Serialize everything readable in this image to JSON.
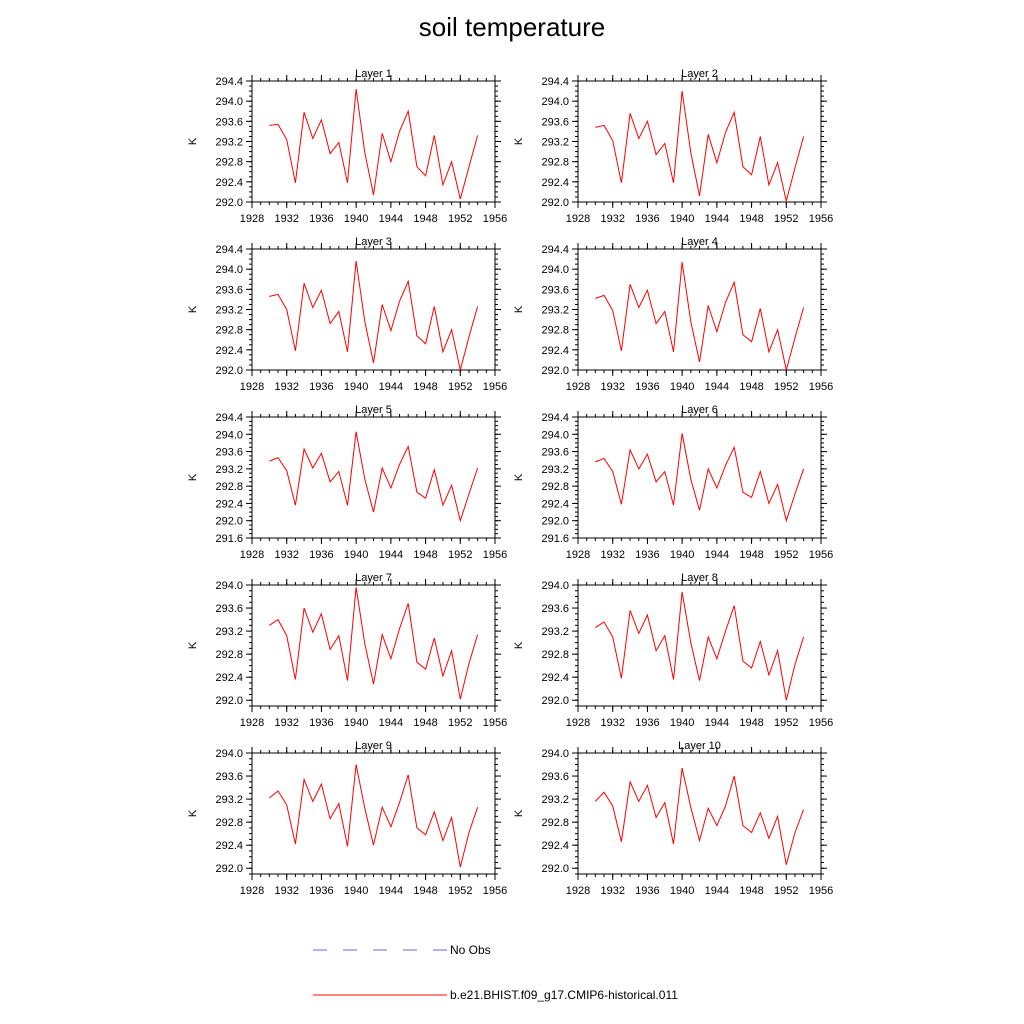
{
  "title": "soil temperature",
  "chart_data": [
    {
      "type": "line",
      "title": "Layer 1",
      "ylabel": "K",
      "ylim": [
        292.0,
        294.4
      ],
      "yticks": [
        "292.0",
        "292.4",
        "292.8",
        "293.2",
        "293.6",
        "294.0",
        "294.4"
      ],
      "xlim": [
        1928,
        1956
      ],
      "xticks": [
        "1928",
        "1932",
        "1936",
        "1940",
        "1944",
        "1948",
        "1952",
        "1956"
      ],
      "series": [
        {
          "name": "b.e21.BHIST.f09_g17.CMIP6-historical.011",
          "x": [
            1930,
            1931,
            1932,
            1933,
            1934,
            1935,
            1936,
            1937,
            1938,
            1939,
            1940,
            1941,
            1942,
            1943,
            1944,
            1945,
            1946,
            1947,
            1948,
            1949,
            1950,
            1951,
            1952,
            1953,
            1954
          ],
          "y": [
            293.52,
            293.54,
            293.24,
            292.38,
            293.78,
            293.26,
            293.63,
            292.96,
            293.18,
            292.38,
            294.24,
            292.98,
            292.14,
            293.36,
            292.8,
            293.4,
            293.8,
            292.7,
            292.52,
            293.32,
            292.34,
            292.8,
            292.06,
            292.7,
            293.32
          ]
        }
      ]
    },
    {
      "type": "line",
      "title": "Layer 2",
      "ylabel": "K",
      "ylim": [
        292.0,
        294.4
      ],
      "yticks": [
        "292.0",
        "292.4",
        "292.8",
        "293.2",
        "293.6",
        "294.0",
        "294.4"
      ],
      "xlim": [
        1928,
        1956
      ],
      "xticks": [
        "1928",
        "1932",
        "1936",
        "1940",
        "1944",
        "1948",
        "1952",
        "1956"
      ],
      "series": [
        {
          "name": "b.e21.BHIST.f09_g17.CMIP6-historical.011",
          "x": [
            1930,
            1931,
            1932,
            1933,
            1934,
            1935,
            1936,
            1937,
            1938,
            1939,
            1940,
            1941,
            1942,
            1943,
            1944,
            1945,
            1946,
            1947,
            1948,
            1949,
            1950,
            1951,
            1952,
            1953,
            1954
          ],
          "y": [
            293.48,
            293.52,
            293.22,
            292.38,
            293.76,
            293.26,
            293.6,
            292.94,
            293.16,
            292.38,
            294.2,
            292.98,
            292.12,
            293.34,
            292.78,
            293.38,
            293.78,
            292.7,
            292.54,
            293.3,
            292.34,
            292.78,
            292.02,
            292.68,
            293.3
          ]
        }
      ]
    },
    {
      "type": "line",
      "title": "Layer 3",
      "ylabel": "K",
      "ylim": [
        292.0,
        294.4
      ],
      "yticks": [
        "292.0",
        "292.4",
        "292.8",
        "293.2",
        "293.6",
        "294.0",
        "294.4"
      ],
      "xlim": [
        1928,
        1956
      ],
      "xticks": [
        "1928",
        "1932",
        "1936",
        "1940",
        "1944",
        "1948",
        "1952",
        "1956"
      ],
      "series": [
        {
          "name": "b.e21.BHIST.f09_g17.CMIP6-historical.011",
          "x": [
            1930,
            1931,
            1932,
            1933,
            1934,
            1935,
            1936,
            1937,
            1938,
            1939,
            1940,
            1941,
            1942,
            1943,
            1944,
            1945,
            1946,
            1947,
            1948,
            1949,
            1950,
            1951,
            1952,
            1953,
            1954
          ],
          "y": [
            293.46,
            293.5,
            293.2,
            292.38,
            293.72,
            293.24,
            293.58,
            292.92,
            293.16,
            292.36,
            294.16,
            292.96,
            292.14,
            293.3,
            292.78,
            293.36,
            293.76,
            292.68,
            292.52,
            293.26,
            292.36,
            292.8,
            292.0,
            292.66,
            293.26
          ]
        }
      ]
    },
    {
      "type": "line",
      "title": "Layer 4",
      "ylabel": "K",
      "ylim": [
        292.0,
        294.4
      ],
      "yticks": [
        "292.0",
        "292.4",
        "292.8",
        "293.2",
        "293.6",
        "294.0",
        "294.4"
      ],
      "xlim": [
        1928,
        1956
      ],
      "xticks": [
        "1928",
        "1932",
        "1936",
        "1940",
        "1944",
        "1948",
        "1952",
        "1956"
      ],
      "series": [
        {
          "name": "b.e21.BHIST.f09_g17.CMIP6-historical.011",
          "x": [
            1930,
            1931,
            1932,
            1933,
            1934,
            1935,
            1936,
            1937,
            1938,
            1939,
            1940,
            1941,
            1942,
            1943,
            1944,
            1945,
            1946,
            1947,
            1948,
            1949,
            1950,
            1951,
            1952,
            1953,
            1954
          ],
          "y": [
            293.42,
            293.48,
            293.18,
            292.38,
            293.7,
            293.24,
            293.58,
            292.92,
            293.16,
            292.36,
            294.14,
            292.96,
            292.16,
            293.28,
            292.76,
            293.34,
            293.74,
            292.7,
            292.56,
            293.22,
            292.36,
            292.8,
            292.0,
            292.64,
            293.24
          ]
        }
      ]
    },
    {
      "type": "line",
      "title": "Layer 5",
      "ylabel": "K",
      "ylim": [
        291.6,
        294.4
      ],
      "yticks": [
        "291.6",
        "292.0",
        "292.4",
        "292.8",
        "293.2",
        "293.6",
        "294.0",
        "294.4"
      ],
      "xlim": [
        1928,
        1956
      ],
      "xticks": [
        "1928",
        "1932",
        "1936",
        "1940",
        "1944",
        "1948",
        "1952",
        "1956"
      ],
      "series": [
        {
          "name": "b.e21.BHIST.f09_g17.CMIP6-historical.011",
          "x": [
            1930,
            1931,
            1932,
            1933,
            1934,
            1935,
            1936,
            1937,
            1938,
            1939,
            1940,
            1941,
            1942,
            1943,
            1944,
            1945,
            1946,
            1947,
            1948,
            1949,
            1950,
            1951,
            1952,
            1953,
            1954
          ],
          "y": [
            293.38,
            293.46,
            293.16,
            292.36,
            293.66,
            293.22,
            293.56,
            292.9,
            293.14,
            292.36,
            294.06,
            292.96,
            292.2,
            293.22,
            292.76,
            293.3,
            293.72,
            292.66,
            292.52,
            293.18,
            292.36,
            292.82,
            292.0,
            292.62,
            293.22
          ]
        }
      ]
    },
    {
      "type": "line",
      "title": "Layer 6",
      "ylabel": "K",
      "ylim": [
        291.6,
        294.4
      ],
      "yticks": [
        "291.6",
        "292.0",
        "292.4",
        "292.8",
        "293.2",
        "293.6",
        "294.0",
        "294.4"
      ],
      "xlim": [
        1928,
        1956
      ],
      "xticks": [
        "1928",
        "1932",
        "1936",
        "1940",
        "1944",
        "1948",
        "1952",
        "1956"
      ],
      "series": [
        {
          "name": "b.e21.BHIST.f09_g17.CMIP6-historical.011",
          "x": [
            1930,
            1931,
            1932,
            1933,
            1934,
            1935,
            1936,
            1937,
            1938,
            1939,
            1940,
            1941,
            1942,
            1943,
            1944,
            1945,
            1946,
            1947,
            1948,
            1949,
            1950,
            1951,
            1952,
            1953,
            1954
          ],
          "y": [
            293.36,
            293.44,
            293.14,
            292.38,
            293.64,
            293.2,
            293.54,
            292.9,
            293.14,
            292.36,
            294.02,
            292.96,
            292.24,
            293.2,
            292.76,
            293.28,
            293.7,
            292.66,
            292.54,
            293.14,
            292.4,
            292.84,
            292.0,
            292.62,
            293.2
          ]
        }
      ]
    },
    {
      "type": "line",
      "title": "Layer 7",
      "ylabel": "K",
      "ylim": [
        291.9,
        294.0
      ],
      "yticks": [
        "292.0",
        "292.4",
        "292.8",
        "293.2",
        "293.6",
        "294.0"
      ],
      "xlim": [
        1928,
        1956
      ],
      "xticks": [
        "1928",
        "1932",
        "1936",
        "1940",
        "1944",
        "1948",
        "1952",
        "1956"
      ],
      "series": [
        {
          "name": "b.e21.BHIST.f09_g17.CMIP6-historical.011",
          "x": [
            1930,
            1931,
            1932,
            1933,
            1934,
            1935,
            1936,
            1937,
            1938,
            1939,
            1940,
            1941,
            1942,
            1943,
            1944,
            1945,
            1946,
            1947,
            1948,
            1949,
            1950,
            1951,
            1952,
            1953,
            1954
          ],
          "y": [
            293.3,
            293.4,
            293.12,
            292.36,
            293.6,
            293.18,
            293.5,
            292.88,
            293.12,
            292.34,
            293.96,
            292.98,
            292.28,
            293.14,
            292.72,
            293.24,
            293.68,
            292.66,
            292.54,
            293.08,
            292.42,
            292.86,
            292.02,
            292.64,
            293.14
          ]
        }
      ]
    },
    {
      "type": "line",
      "title": "Layer 8",
      "ylabel": "K",
      "ylim": [
        291.9,
        294.0
      ],
      "yticks": [
        "292.0",
        "292.4",
        "292.8",
        "293.2",
        "293.6",
        "294.0"
      ],
      "xlim": [
        1928,
        1956
      ],
      "xticks": [
        "1928",
        "1932",
        "1936",
        "1940",
        "1944",
        "1948",
        "1952",
        "1956"
      ],
      "series": [
        {
          "name": "b.e21.BHIST.f09_g17.CMIP6-historical.011",
          "x": [
            1930,
            1931,
            1932,
            1933,
            1934,
            1935,
            1936,
            1937,
            1938,
            1939,
            1940,
            1941,
            1942,
            1943,
            1944,
            1945,
            1946,
            1947,
            1948,
            1949,
            1950,
            1951,
            1952,
            1953,
            1954
          ],
          "y": [
            293.26,
            293.36,
            293.1,
            292.38,
            293.56,
            293.16,
            293.48,
            292.86,
            293.12,
            292.36,
            293.88,
            293.0,
            292.34,
            293.1,
            292.72,
            293.2,
            293.64,
            292.68,
            292.56,
            293.02,
            292.44,
            292.86,
            292.0,
            292.62,
            293.1
          ]
        }
      ]
    },
    {
      "type": "line",
      "title": "Layer 9",
      "ylabel": "K",
      "ylim": [
        291.9,
        294.0
      ],
      "yticks": [
        "292.0",
        "292.4",
        "292.8",
        "293.2",
        "293.6",
        "294.0"
      ],
      "xlim": [
        1928,
        1956
      ],
      "xticks": [
        "1928",
        "1932",
        "1936",
        "1940",
        "1944",
        "1948",
        "1952",
        "1956"
      ],
      "series": [
        {
          "name": "b.e21.BHIST.f09_g17.CMIP6-historical.011",
          "x": [
            1930,
            1931,
            1932,
            1933,
            1934,
            1935,
            1936,
            1937,
            1938,
            1939,
            1940,
            1941,
            1942,
            1943,
            1944,
            1945,
            1946,
            1947,
            1948,
            1949,
            1950,
            1951,
            1952,
            1953,
            1954
          ],
          "y": [
            293.22,
            293.34,
            293.1,
            292.42,
            293.54,
            293.16,
            293.46,
            292.86,
            293.12,
            292.38,
            293.8,
            293.04,
            292.4,
            293.06,
            292.72,
            293.14,
            293.62,
            292.7,
            292.58,
            292.98,
            292.48,
            292.88,
            292.02,
            292.62,
            293.06
          ]
        }
      ]
    },
    {
      "type": "line",
      "title": "Layer 10",
      "ylabel": "K",
      "ylim": [
        291.9,
        294.0
      ],
      "yticks": [
        "292.0",
        "292.4",
        "292.8",
        "293.2",
        "293.6",
        "294.0"
      ],
      "xlim": [
        1928,
        1956
      ],
      "xticks": [
        "1928",
        "1932",
        "1936",
        "1940",
        "1944",
        "1948",
        "1952",
        "1956"
      ],
      "series": [
        {
          "name": "b.e21.BHIST.f09_g17.CMIP6-historical.011",
          "x": [
            1930,
            1931,
            1932,
            1933,
            1934,
            1935,
            1936,
            1937,
            1938,
            1939,
            1940,
            1941,
            1942,
            1943,
            1944,
            1945,
            1946,
            1947,
            1948,
            1949,
            1950,
            1951,
            1952,
            1953,
            1954
          ],
          "y": [
            293.16,
            293.32,
            293.08,
            292.46,
            293.5,
            293.16,
            293.44,
            292.88,
            293.14,
            292.42,
            293.74,
            293.06,
            292.48,
            293.04,
            292.74,
            293.08,
            293.6,
            292.74,
            292.62,
            292.96,
            292.52,
            292.9,
            292.06,
            292.62,
            293.02
          ]
        }
      ]
    }
  ],
  "legend": {
    "items": [
      {
        "label": "No Obs",
        "color": "#6a6ad8",
        "style": "dashed"
      },
      {
        "label": "b.e21.BHIST.f09_g17.CMIP6-historical.011",
        "color": "#ff0000",
        "style": "solid"
      }
    ]
  }
}
